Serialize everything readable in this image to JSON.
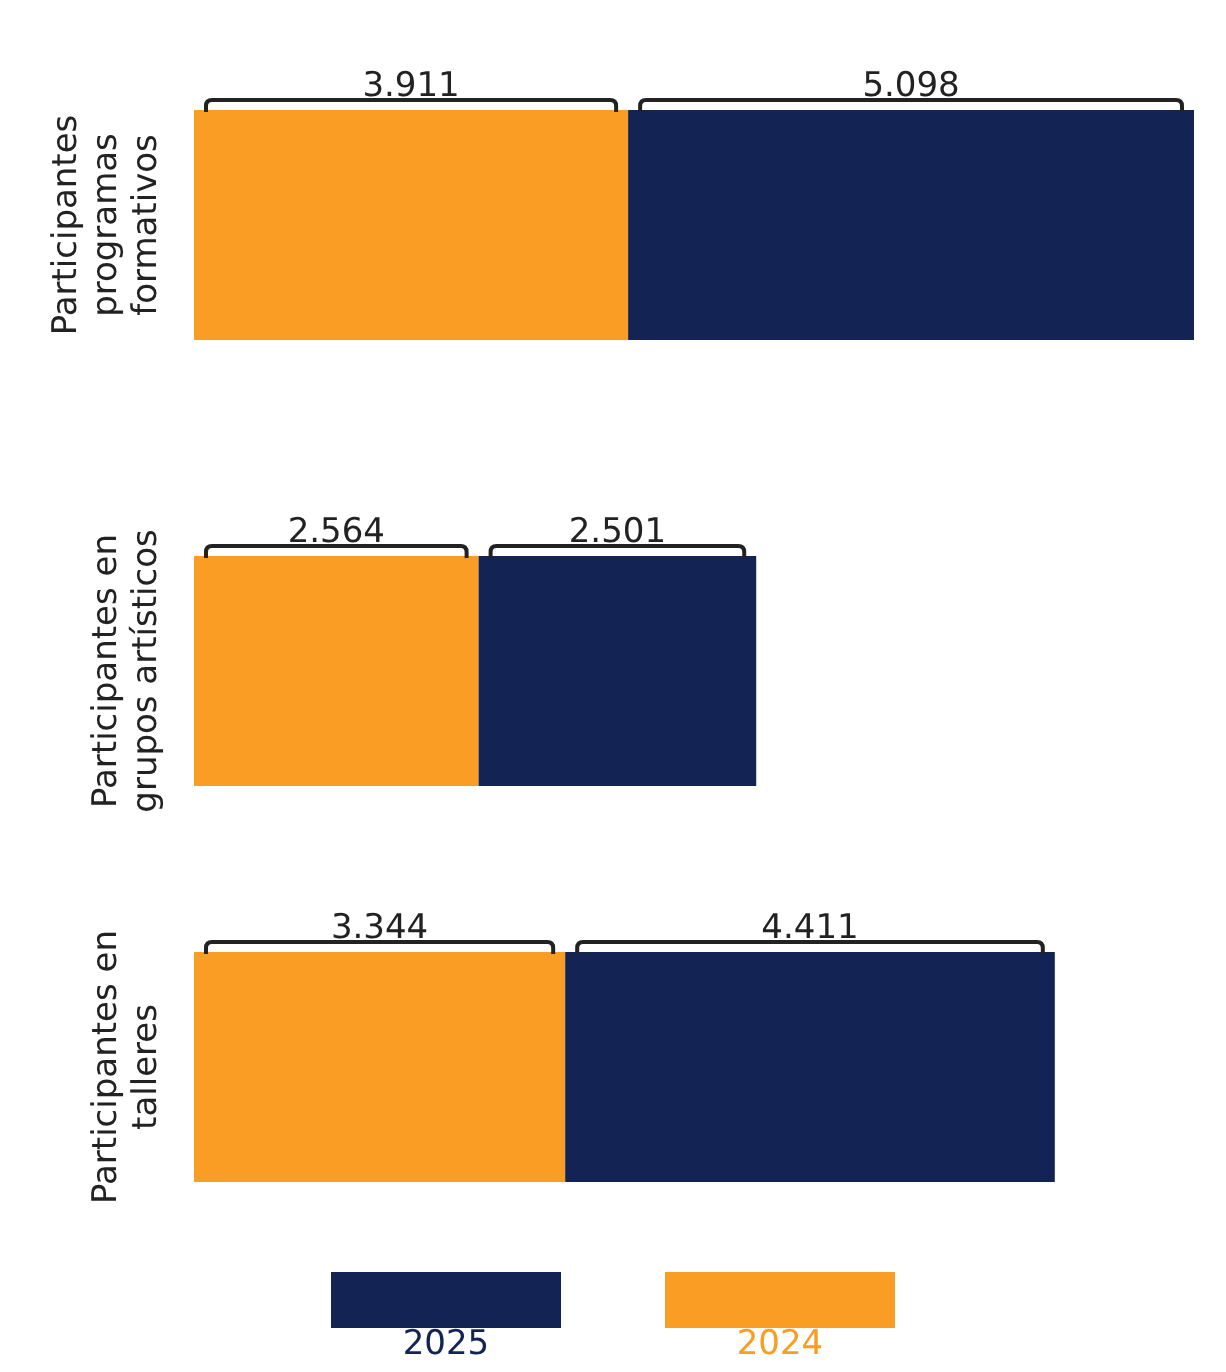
{
  "chart_data": {
    "type": "bar",
    "orientation": "horizontal",
    "stacked": true,
    "categories": [
      "Participantes programas formativos",
      "Participantes en grupos artísticos",
      "Participantes en talleres"
    ],
    "series": [
      {
        "name": "2024",
        "color": "#f99d25",
        "values": [
          3911,
          2564,
          3344
        ],
        "value_labels": [
          "3.911",
          "2.564",
          "3.344"
        ]
      },
      {
        "name": "2025",
        "color": "#132353",
        "values": [
          5098,
          2501,
          4411
        ],
        "value_labels": [
          "5.098",
          "2.501",
          "4.411"
        ]
      }
    ],
    "legend": "bottom"
  }
}
